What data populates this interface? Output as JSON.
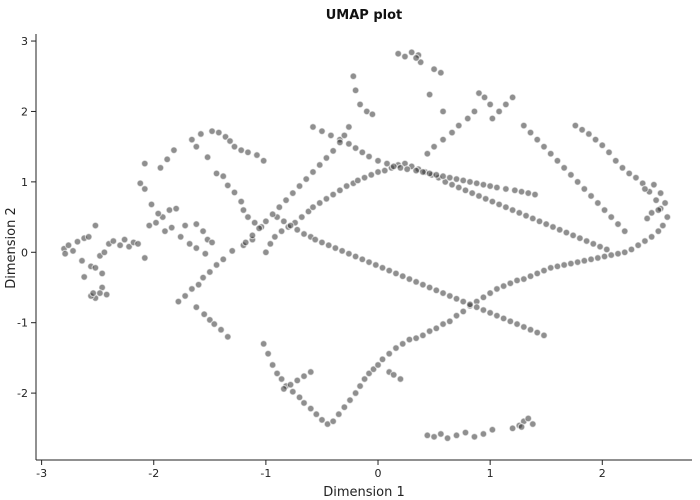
{
  "chart_data": {
    "type": "scatter",
    "title": "UMAP plot",
    "xlabel": "Dimension 1",
    "ylabel": "Dimension 2",
    "xlim": [
      -3.05,
      2.8
    ],
    "ylim": [
      -2.95,
      3.1
    ],
    "xticks": [
      -3,
      -2,
      -1,
      0,
      1,
      2
    ],
    "yticks": [
      -2,
      -1,
      0,
      1,
      2,
      3
    ],
    "grid": false,
    "point_color": "#333333",
    "series": [
      {
        "x": [
          -2.8,
          -2.76,
          -2.72,
          -2.79,
          -2.68,
          -2.62,
          -2.58,
          -2.52,
          -2.64,
          -2.56,
          -2.48,
          -2.44,
          -2.4,
          -2.36,
          -2.3,
          -2.26,
          -2.22,
          -2.18,
          -2.14,
          -2.08,
          -2.04,
          -2.62,
          -2.52,
          -2.46,
          -2.42,
          -2.52,
          -2.48,
          -2.46,
          -2.56,
          -2.54,
          -1.98,
          -1.92,
          -1.86,
          -1.8,
          -1.72,
          -1.62,
          -1.56,
          -1.52,
          -1.48,
          -1.54,
          -1.62,
          -1.68,
          -1.76,
          -1.84,
          -1.9,
          -1.96,
          -2.02,
          -2.08,
          -2.12,
          -1.66,
          -1.58,
          -1.48,
          -1.42,
          -1.36,
          -1.32,
          -1.28,
          -1.22,
          -1.16,
          -1.08,
          -1.02,
          -2.08,
          -1.94,
          -1.88,
          -1.82,
          -1.62,
          -1.52,
          -1.44,
          -1.38,
          -1.34,
          -1.28,
          -1.22,
          -1.2,
          -1.16,
          -1.1,
          -1.04,
          -1.12,
          -1.2,
          -1.3,
          -1.38,
          -1.44,
          -1.5,
          -1.56,
          -1.6,
          -1.66,
          -1.72,
          -1.78,
          -1.62,
          -1.55,
          -1.5,
          -1.46,
          -1.4,
          -1.34,
          -1.02,
          -0.98,
          -0.94,
          -0.9,
          -0.86,
          -0.82,
          -0.76,
          -0.7,
          -0.66,
          -0.6,
          -0.55,
          -0.5,
          -0.45,
          -0.4,
          -0.35,
          -0.3,
          -0.25,
          -0.2,
          -0.16,
          -0.12,
          -0.08,
          -0.04,
          0.0,
          0.04,
          0.1,
          0.16,
          0.22,
          0.28,
          0.34,
          0.4,
          0.46,
          0.52,
          0.58,
          0.64,
          0.7,
          0.76,
          0.82,
          0.88,
          0.94,
          1.0,
          1.06,
          1.12,
          1.18,
          1.24,
          1.3,
          1.36,
          1.42,
          1.48,
          1.54,
          1.6,
          1.66,
          1.72,
          1.78,
          1.84,
          1.9,
          1.96,
          2.02,
          2.08,
          2.14,
          2.2,
          2.26,
          2.32,
          2.38,
          2.44,
          2.5,
          2.54,
          2.58,
          2.52,
          2.48,
          2.42,
          2.36,
          2.3,
          2.24,
          2.18,
          2.12,
          2.06,
          2.0,
          1.94,
          1.88,
          1.82,
          1.76,
          2.38,
          2.46,
          2.52,
          2.56,
          2.5,
          2.44,
          2.4,
          -1.0,
          -0.96,
          -0.92,
          -0.86,
          -0.8,
          -0.74,
          -0.68,
          -0.62,
          -0.58,
          -0.52,
          -0.46,
          -0.4,
          -0.34,
          -0.28,
          -0.22,
          -0.18,
          -0.12,
          -0.06,
          0.0,
          0.06,
          0.12,
          0.18,
          0.24,
          0.3,
          0.36,
          0.42,
          0.48,
          0.54,
          0.6,
          0.66,
          0.72,
          0.78,
          0.84,
          0.9,
          0.96,
          1.02,
          1.08,
          1.14,
          1.2,
          1.26,
          1.32,
          1.38,
          1.44,
          1.5,
          1.56,
          1.62,
          1.68,
          1.74,
          1.8,
          1.86,
          1.92,
          1.98,
          2.04,
          -0.9,
          -0.84,
          -0.78,
          -0.72,
          -0.66,
          -0.6,
          -0.56,
          -0.5,
          -0.44,
          -0.38,
          -0.32,
          -0.26,
          -0.2,
          -0.14,
          -0.08,
          -0.02,
          0.04,
          0.1,
          0.16,
          0.22,
          0.28,
          0.34,
          0.4,
          0.46,
          0.52,
          0.58,
          0.64,
          0.7,
          0.76,
          0.82,
          0.88,
          0.94,
          1.0,
          1.06,
          1.12,
          1.18,
          1.24,
          1.3,
          1.36,
          1.42,
          1.48,
          -0.58,
          -0.5,
          -0.42,
          -0.34,
          -0.26,
          -0.2,
          -0.14,
          -0.08,
          0.0,
          0.08,
          0.14,
          0.2,
          0.26,
          0.34,
          0.4,
          0.46,
          0.52,
          0.58,
          0.64,
          0.7,
          0.76,
          0.82,
          0.88,
          0.94,
          1.0,
          1.06,
          1.14,
          1.22,
          1.28,
          1.34,
          1.4,
          0.44,
          0.5,
          0.56,
          0.62,
          0.7,
          0.78,
          0.86,
          0.94,
          1.02,
          1.2,
          1.26,
          1.3,
          1.34,
          1.38,
          1.28,
          0.18,
          0.24,
          0.3,
          0.36,
          0.38,
          0.34,
          0.5,
          0.56,
          0.58,
          0.46,
          -0.22,
          -0.2,
          -0.16,
          -0.1,
          -0.05,
          -0.26,
          -0.3,
          -0.34,
          -0.4,
          -0.46,
          -0.52,
          -0.58,
          -0.64,
          -0.7,
          -0.76,
          -0.82,
          -0.88,
          -0.94,
          -1.0,
          -1.06,
          -1.12,
          -1.18,
          -0.6,
          -0.66,
          -0.72,
          -0.78,
          -0.84,
          0.1,
          0.14,
          0.2,
          0.9,
          0.95,
          1.0,
          0.86,
          0.8,
          0.72,
          0.66,
          0.58,
          0.5,
          0.44,
          1.2,
          1.14,
          1.08,
          1.02,
          1.3,
          1.36,
          1.42,
          1.48,
          1.54,
          1.6,
          1.66,
          1.72,
          1.78,
          1.84,
          1.9,
          1.96,
          2.02,
          2.08,
          2.14,
          2.2
        ],
        "y": [
          0.05,
          0.1,
          0.02,
          -0.02,
          0.15,
          0.2,
          0.22,
          0.38,
          -0.12,
          -0.2,
          -0.05,
          0.0,
          0.12,
          0.16,
          0.1,
          0.18,
          0.08,
          0.14,
          0.12,
          -0.08,
          0.38,
          -0.35,
          -0.22,
          -0.5,
          -0.6,
          -0.65,
          -0.58,
          -0.3,
          -0.62,
          -0.58,
          0.42,
          0.5,
          0.6,
          0.62,
          0.38,
          0.4,
          0.3,
          0.18,
          0.14,
          -0.02,
          0.06,
          0.12,
          0.22,
          0.35,
          0.3,
          0.55,
          0.68,
          0.9,
          0.98,
          1.6,
          1.68,
          1.72,
          1.7,
          1.64,
          1.58,
          1.5,
          1.45,
          1.42,
          1.38,
          1.3,
          1.26,
          1.2,
          1.32,
          1.45,
          1.5,
          1.35,
          1.12,
          1.08,
          0.95,
          0.85,
          0.72,
          0.6,
          0.5,
          0.42,
          0.36,
          0.18,
          0.1,
          0.02,
          -0.1,
          -0.18,
          -0.28,
          -0.36,
          -0.46,
          -0.52,
          -0.62,
          -0.7,
          -0.78,
          -0.88,
          -0.96,
          -1.02,
          -1.1,
          -1.2,
          -1.3,
          -1.44,
          -1.6,
          -1.72,
          -1.8,
          -1.9,
          -1.98,
          -2.06,
          -2.14,
          -2.22,
          -2.3,
          -2.38,
          -2.44,
          -2.4,
          -2.3,
          -2.2,
          -2.1,
          -2.0,
          -1.9,
          -1.8,
          -1.72,
          -1.66,
          -1.6,
          -1.52,
          -1.44,
          -1.36,
          -1.3,
          -1.24,
          -1.22,
          -1.18,
          -1.12,
          -1.08,
          -1.02,
          -0.98,
          -0.9,
          -0.84,
          -0.76,
          -0.7,
          -0.64,
          -0.58,
          -0.52,
          -0.48,
          -0.44,
          -0.4,
          -0.38,
          -0.34,
          -0.3,
          -0.26,
          -0.22,
          -0.2,
          -0.18,
          -0.16,
          -0.14,
          -0.12,
          -0.1,
          -0.08,
          -0.06,
          -0.04,
          -0.02,
          0.0,
          0.04,
          0.1,
          0.16,
          0.22,
          0.3,
          0.38,
          0.5,
          0.62,
          0.74,
          0.86,
          0.98,
          1.06,
          1.12,
          1.2,
          1.3,
          1.42,
          1.52,
          1.6,
          1.68,
          1.74,
          1.8,
          0.9,
          0.96,
          0.84,
          0.7,
          0.6,
          0.56,
          0.48,
          0.0,
          0.12,
          0.22,
          0.3,
          0.36,
          0.42,
          0.5,
          0.58,
          0.64,
          0.7,
          0.76,
          0.82,
          0.88,
          0.94,
          0.98,
          1.02,
          1.06,
          1.1,
          1.14,
          1.16,
          1.2,
          1.24,
          1.26,
          1.22,
          1.18,
          1.14,
          1.1,
          1.06,
          1.0,
          0.96,
          0.92,
          0.88,
          0.84,
          0.8,
          0.76,
          0.72,
          0.68,
          0.64,
          0.6,
          0.56,
          0.52,
          0.48,
          0.44,
          0.4,
          0.36,
          0.32,
          0.28,
          0.24,
          0.2,
          0.16,
          0.12,
          0.08,
          0.04,
          0.5,
          0.44,
          0.38,
          0.32,
          0.26,
          0.22,
          0.18,
          0.14,
          0.1,
          0.06,
          0.02,
          -0.02,
          -0.06,
          -0.1,
          -0.14,
          -0.18,
          -0.22,
          -0.26,
          -0.3,
          -0.34,
          -0.38,
          -0.42,
          -0.46,
          -0.5,
          -0.54,
          -0.58,
          -0.62,
          -0.66,
          -0.7,
          -0.74,
          -0.78,
          -0.82,
          -0.86,
          -0.9,
          -0.94,
          -0.98,
          -1.02,
          -1.06,
          -1.1,
          -1.14,
          -1.18,
          1.78,
          1.72,
          1.66,
          1.6,
          1.54,
          1.48,
          1.42,
          1.36,
          1.3,
          1.26,
          1.22,
          1.2,
          1.18,
          1.16,
          1.14,
          1.12,
          1.1,
          1.08,
          1.06,
          1.04,
          1.02,
          1.0,
          0.98,
          0.96,
          0.94,
          0.92,
          0.9,
          0.88,
          0.86,
          0.84,
          0.82,
          -2.6,
          -2.62,
          -2.58,
          -2.64,
          -2.6,
          -2.56,
          -2.62,
          -2.58,
          -2.52,
          -2.5,
          -2.46,
          -2.4,
          -2.36,
          -2.44,
          -2.48,
          2.82,
          2.78,
          2.84,
          2.8,
          2.7,
          2.76,
          2.6,
          2.55,
          2.0,
          2.24,
          2.5,
          2.3,
          2.1,
          2.0,
          1.96,
          1.78,
          1.66,
          1.56,
          1.44,
          1.34,
          1.24,
          1.14,
          1.04,
          0.94,
          0.84,
          0.74,
          0.64,
          0.54,
          0.44,
          0.34,
          0.24,
          0.14,
          -1.7,
          -1.76,
          -1.82,
          -1.88,
          -1.94,
          -1.7,
          -1.74,
          -1.8,
          2.26,
          2.2,
          2.1,
          2.0,
          1.9,
          1.8,
          1.7,
          1.6,
          1.5,
          1.4,
          2.2,
          2.1,
          2.0,
          1.9,
          1.8,
          1.7,
          1.6,
          1.5,
          1.4,
          1.3,
          1.2,
          1.1,
          1.0,
          0.9,
          0.8,
          0.7,
          0.6,
          0.5,
          0.4,
          0.3
        ]
      }
    ]
  }
}
